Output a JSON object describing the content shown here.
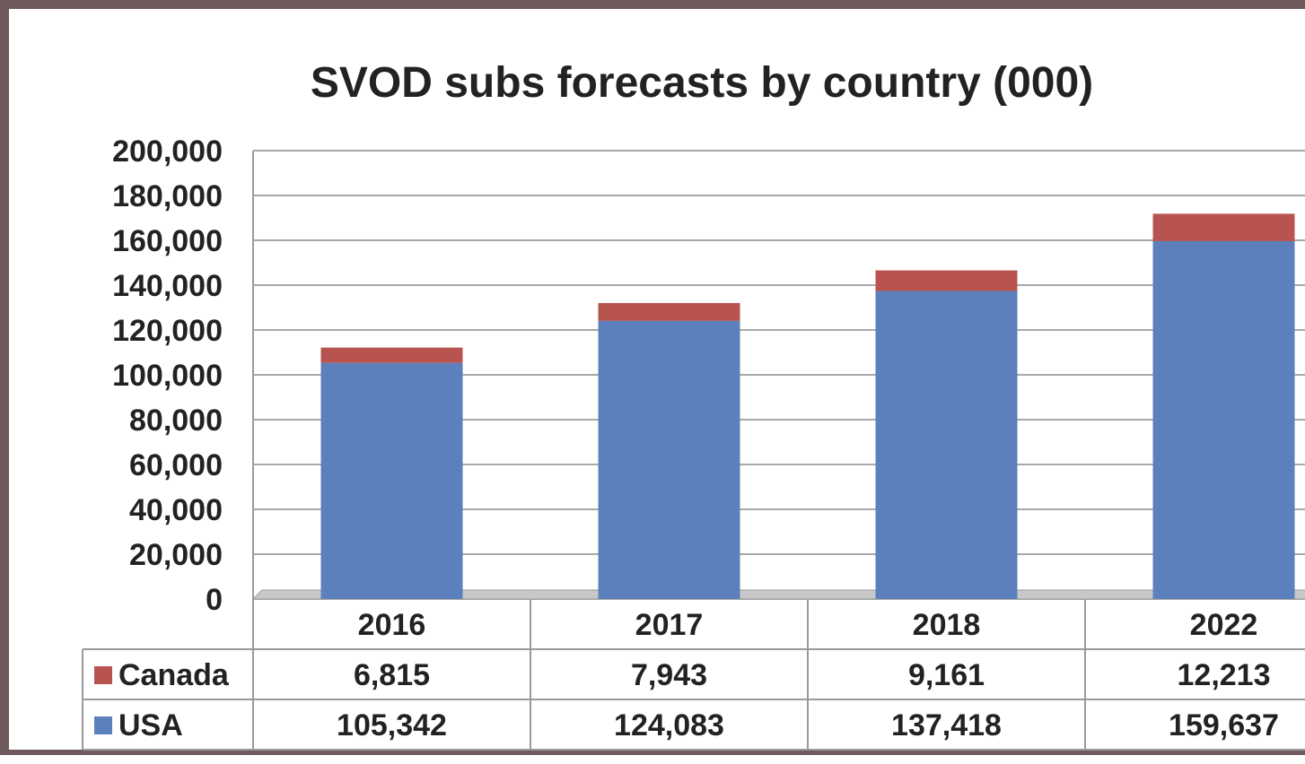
{
  "chart_data": {
    "type": "bar",
    "stacked": true,
    "title": "SVOD subs forecasts by country (000)",
    "xlabel": "",
    "ylabel": "",
    "categories": [
      "2016",
      "2017",
      "2018",
      "2022"
    ],
    "series": [
      {
        "name": "USA",
        "color": "#5b80bb",
        "values": [
          105342,
          124083,
          137418,
          159637
        ],
        "labels": [
          "105,342",
          "124,083",
          "137,418",
          "159,637"
        ]
      },
      {
        "name": "Canada",
        "color": "#b85450",
        "values": [
          6815,
          7943,
          9161,
          12213
        ],
        "labels": [
          "6,815",
          "7,943",
          "9,161",
          "12,213"
        ]
      }
    ],
    "ylim": [
      0,
      200000
    ],
    "yticks": [
      "0",
      "20,000",
      "40,000",
      "60,000",
      "80,000",
      "100,000",
      "120,000",
      "140,000",
      "160,000",
      "180,000",
      "200,000"
    ],
    "grid": true,
    "legend": "data-table",
    "data_table": {
      "rows_order": [
        "Canada",
        "USA"
      ]
    }
  }
}
